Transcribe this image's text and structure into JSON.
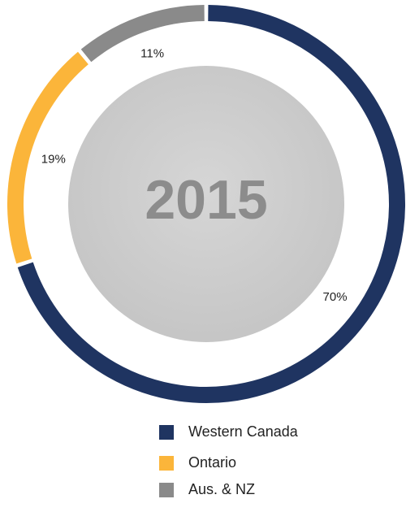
{
  "chart_data": {
    "type": "donut",
    "center_text": "2015",
    "categories": [
      "Western Canada",
      "Ontario",
      "Aus. & NZ"
    ],
    "values": [
      70,
      19,
      11
    ],
    "value_labels": [
      "70%",
      "19%",
      "11%"
    ],
    "colors": [
      "#1f3461",
      "#fbb53a",
      "#8a8a8a"
    ]
  }
}
